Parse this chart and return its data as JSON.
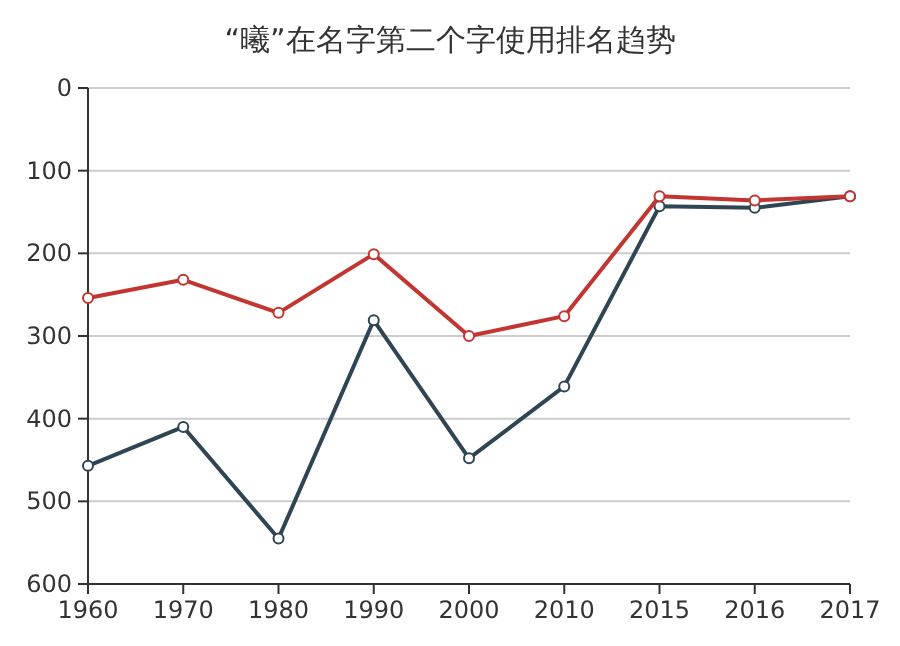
{
  "chart_data": {
    "type": "line",
    "title": "“曦”在名字第二个字使用排名趋势",
    "categories": [
      "1960",
      "1970",
      "1980",
      "1990",
      "2000",
      "2010",
      "2015",
      "2016",
      "2017"
    ],
    "series": [
      {
        "color": "#2f4554",
        "values": [
          457,
          410,
          545,
          281,
          448,
          361,
          143,
          145,
          131
        ]
      },
      {
        "color": "#c23531",
        "values": [
          254,
          232,
          272,
          201,
          300,
          276,
          131,
          136,
          131
        ]
      }
    ],
    "ylim": [
      600,
      0
    ],
    "yticks": [
      0,
      100,
      200,
      300,
      400,
      500,
      600
    ],
    "grid": "y",
    "marker": "circle"
  }
}
